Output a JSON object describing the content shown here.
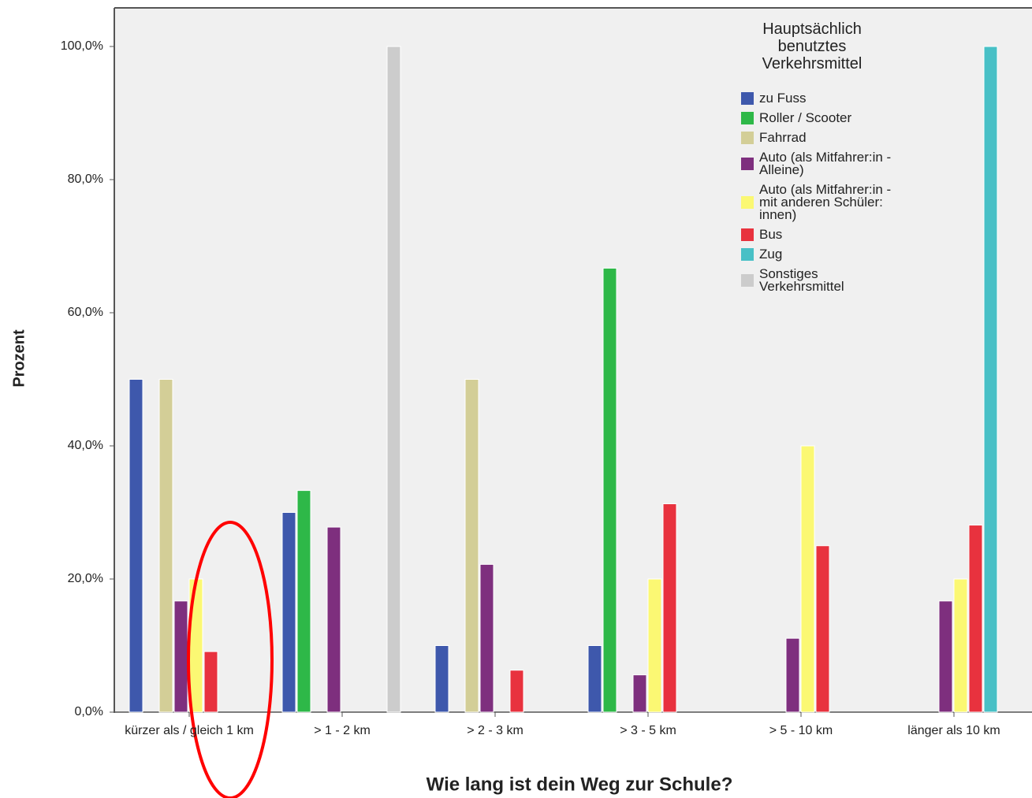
{
  "chart_data": {
    "type": "bar",
    "x_label": "Wie lang ist dein Weg zur Schule?",
    "y_label": "Prozent",
    "legend_title": "Hauptsächlich benutztes Verkehrsmittel",
    "legend_position": "top-right",
    "grid": false,
    "categories": [
      "kürzer als / gleich 1 km",
      "> 1 - 2 km",
      "> 2 - 3 km",
      "> 3 - 5 km",
      "> 5 - 10 km",
      "länger als 10 km"
    ],
    "series": [
      {
        "name": "zu Fuss",
        "color": "#3e58ac",
        "values": [
          50,
          30,
          10,
          10,
          null,
          null
        ]
      },
      {
        "name": "Roller / Scooter",
        "color": "#2eb848",
        "values": [
          null,
          33.3,
          null,
          66.7,
          null,
          null
        ]
      },
      {
        "name": "Fahrrad",
        "color": "#d3ce97",
        "values": [
          50,
          null,
          50,
          null,
          null,
          null
        ]
      },
      {
        "name": "Auto (als Mitfahrer:in - Alleine)",
        "color": "#7e2f7e",
        "values": [
          16.7,
          27.8,
          22.2,
          5.6,
          11.1,
          16.7
        ]
      },
      {
        "name": "Auto (als Mitfahrer:in - mit anderen Schüler: innen)",
        "color": "#fbf873",
        "values": [
          20,
          null,
          null,
          20,
          40,
          20
        ]
      },
      {
        "name": "Bus",
        "color": "#e8323e",
        "values": [
          9.1,
          null,
          6.3,
          31.3,
          25,
          28.1
        ]
      },
      {
        "name": "Zug",
        "color": "#48c0c6",
        "values": [
          null,
          null,
          null,
          null,
          null,
          100
        ]
      },
      {
        "name": "Sonstiges Verkehrsmittel",
        "color": "#cccccc",
        "values": [
          null,
          100,
          null,
          null,
          null,
          null
        ]
      }
    ],
    "ylim": [
      0,
      105.8
    ],
    "yticks": [
      {
        "value": 0,
        "label": "0,0%"
      },
      {
        "value": 20,
        "label": "20,0%"
      },
      {
        "value": 40,
        "label": "40,0%"
      },
      {
        "value": 60,
        "label": "60,0%"
      },
      {
        "value": 80,
        "label": "80,0%"
      },
      {
        "value": 100,
        "label": "100,0%"
      }
    ]
  }
}
